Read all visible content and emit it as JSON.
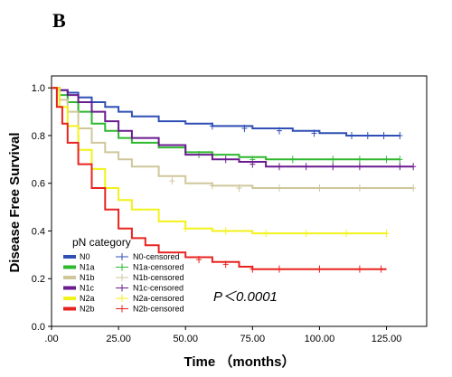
{
  "panel_label": "B",
  "chart_data": {
    "type": "line",
    "xlabel": "Time （months）",
    "ylabel": "Disease Free Survival",
    "xlim": [
      0,
      140
    ],
    "ylim": [
      0,
      1.05
    ],
    "x_ticks": [
      0,
      25,
      50,
      75,
      100,
      125
    ],
    "x_tick_labels": [
      ".00",
      "25.00",
      "50.00",
      "75.00",
      "100.00",
      "125.00"
    ],
    "y_ticks": [
      0,
      0.2,
      0.4,
      0.6,
      0.8,
      1.0
    ],
    "y_tick_labels": [
      "0.0",
      "0.2",
      "0.4",
      "0.6",
      "0.8",
      "1.0"
    ],
    "annotation": "P＜0.0001",
    "legend": {
      "title": "pN category",
      "placement": "bottom-left",
      "entries": [
        {
          "label": "N0",
          "censored_label": "N0-censored",
          "color": "#2f4fb5"
        },
        {
          "label": "N1a",
          "censored_label": "N1a-censored",
          "color": "#2eb82e"
        },
        {
          "label": "N1b",
          "censored_label": "N1b-censored",
          "color": "#cfc79a"
        },
        {
          "label": "N1c",
          "censored_label": "N1c-censored",
          "color": "#6a1b8f"
        },
        {
          "label": "N2a",
          "censored_label": "N2a-censored",
          "color": "#f2f21a"
        },
        {
          "label": "N2b",
          "censored_label": "N2b-censored",
          "color": "#e8231f"
        }
      ]
    },
    "series": [
      {
        "name": "N0",
        "color": "#2f4fb5",
        "points": [
          [
            0,
            1.0
          ],
          [
            3,
            0.99
          ],
          [
            6,
            0.98
          ],
          [
            10,
            0.96
          ],
          [
            15,
            0.94
          ],
          [
            20,
            0.92
          ],
          [
            25,
            0.9
          ],
          [
            30,
            0.88
          ],
          [
            40,
            0.86
          ],
          [
            50,
            0.85
          ],
          [
            60,
            0.84
          ],
          [
            75,
            0.83
          ],
          [
            90,
            0.82
          ],
          [
            100,
            0.81
          ],
          [
            110,
            0.8
          ],
          [
            130,
            0.8
          ]
        ],
        "censored": [
          [
            60,
            0.84
          ],
          [
            72,
            0.83
          ],
          [
            85,
            0.82
          ],
          [
            98,
            0.81
          ],
          [
            112,
            0.8
          ],
          [
            118,
            0.8
          ],
          [
            124,
            0.8
          ],
          [
            130,
            0.8
          ]
        ]
      },
      {
        "name": "N1a",
        "color": "#2eb82e",
        "points": [
          [
            0,
            1.0
          ],
          [
            3,
            0.97
          ],
          [
            6,
            0.94
          ],
          [
            10,
            0.9
          ],
          [
            15,
            0.85
          ],
          [
            20,
            0.82
          ],
          [
            25,
            0.79
          ],
          [
            30,
            0.77
          ],
          [
            40,
            0.75
          ],
          [
            50,
            0.73
          ],
          [
            60,
            0.72
          ],
          [
            70,
            0.71
          ],
          [
            80,
            0.7
          ],
          [
            100,
            0.7
          ],
          [
            130,
            0.7
          ]
        ],
        "censored": [
          [
            55,
            0.72
          ],
          [
            75,
            0.7
          ],
          [
            90,
            0.7
          ],
          [
            105,
            0.7
          ],
          [
            115,
            0.7
          ],
          [
            125,
            0.7
          ],
          [
            130,
            0.7
          ]
        ]
      },
      {
        "name": "N1b",
        "color": "#cfc79a",
        "points": [
          [
            0,
            1.0
          ],
          [
            3,
            0.95
          ],
          [
            6,
            0.9
          ],
          [
            10,
            0.83
          ],
          [
            15,
            0.77
          ],
          [
            20,
            0.73
          ],
          [
            25,
            0.7
          ],
          [
            30,
            0.67
          ],
          [
            40,
            0.63
          ],
          [
            50,
            0.6
          ],
          [
            60,
            0.59
          ],
          [
            75,
            0.58
          ],
          [
            100,
            0.58
          ],
          [
            135,
            0.58
          ]
        ],
        "censored": [
          [
            45,
            0.61
          ],
          [
            60,
            0.59
          ],
          [
            70,
            0.58
          ],
          [
            85,
            0.58
          ],
          [
            100,
            0.58
          ],
          [
            115,
            0.58
          ],
          [
            135,
            0.58
          ]
        ]
      },
      {
        "name": "N1c",
        "color": "#6a1b8f",
        "points": [
          [
            0,
            1.0
          ],
          [
            3,
            0.99
          ],
          [
            6,
            0.97
          ],
          [
            10,
            0.94
          ],
          [
            15,
            0.9
          ],
          [
            20,
            0.86
          ],
          [
            25,
            0.82
          ],
          [
            30,
            0.79
          ],
          [
            40,
            0.76
          ],
          [
            50,
            0.72
          ],
          [
            60,
            0.7
          ],
          [
            70,
            0.69
          ],
          [
            80,
            0.67
          ],
          [
            100,
            0.67
          ],
          [
            135,
            0.67
          ]
        ],
        "censored": [
          [
            65,
            0.7
          ],
          [
            75,
            0.68
          ],
          [
            85,
            0.67
          ],
          [
            95,
            0.67
          ],
          [
            105,
            0.67
          ],
          [
            115,
            0.67
          ],
          [
            130,
            0.67
          ],
          [
            135,
            0.67
          ]
        ]
      },
      {
        "name": "N2a",
        "color": "#f2f21a",
        "points": [
          [
            0,
            1.0
          ],
          [
            3,
            0.92
          ],
          [
            6,
            0.84
          ],
          [
            10,
            0.74
          ],
          [
            15,
            0.66
          ],
          [
            20,
            0.58
          ],
          [
            25,
            0.53
          ],
          [
            30,
            0.49
          ],
          [
            40,
            0.44
          ],
          [
            50,
            0.41
          ],
          [
            60,
            0.4
          ],
          [
            75,
            0.39
          ],
          [
            125,
            0.39
          ]
        ],
        "censored": [
          [
            50,
            0.41
          ],
          [
            65,
            0.4
          ],
          [
            80,
            0.39
          ],
          [
            95,
            0.39
          ],
          [
            110,
            0.39
          ],
          [
            125,
            0.39
          ]
        ]
      },
      {
        "name": "N2b",
        "color": "#e8231f",
        "points": [
          [
            0,
            1.0
          ],
          [
            2,
            0.92
          ],
          [
            4,
            0.85
          ],
          [
            6,
            0.77
          ],
          [
            10,
            0.68
          ],
          [
            15,
            0.58
          ],
          [
            20,
            0.49
          ],
          [
            25,
            0.41
          ],
          [
            30,
            0.37
          ],
          [
            35,
            0.34
          ],
          [
            40,
            0.31
          ],
          [
            50,
            0.29
          ],
          [
            60,
            0.27
          ],
          [
            70,
            0.25
          ],
          [
            75,
            0.24
          ],
          [
            125,
            0.24
          ]
        ],
        "censored": [
          [
            55,
            0.28
          ],
          [
            65,
            0.26
          ],
          [
            75,
            0.24
          ],
          [
            85,
            0.24
          ],
          [
            100,
            0.24
          ],
          [
            115,
            0.24
          ],
          [
            123,
            0.24
          ]
        ]
      }
    ]
  }
}
